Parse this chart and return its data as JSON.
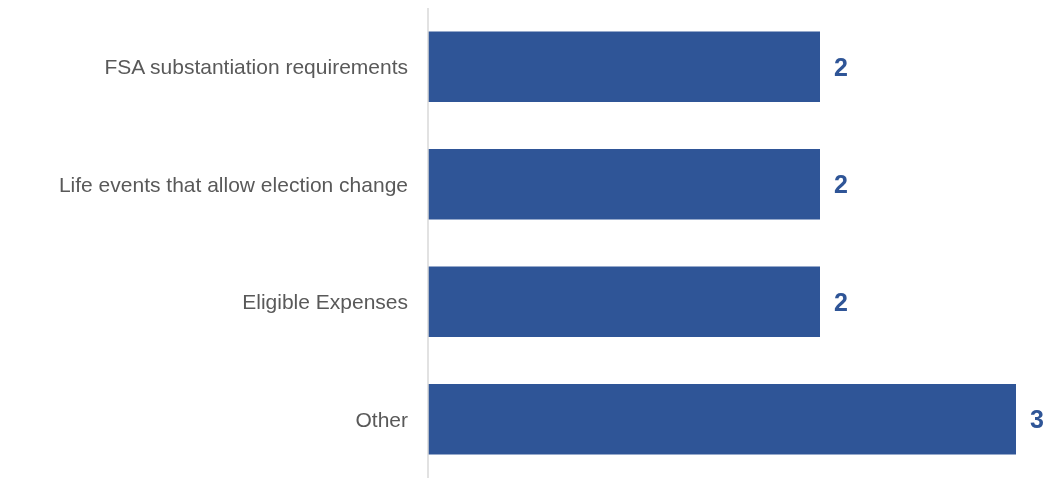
{
  "chart_data": {
    "type": "bar",
    "orientation": "horizontal",
    "categories": [
      "FSA substantiation requirements",
      "Life events that allow election change",
      "Eligible Expenses",
      "Other"
    ],
    "values": [
      2,
      2,
      2,
      3
    ],
    "color": "#2f5597",
    "data_labels": true
  }
}
